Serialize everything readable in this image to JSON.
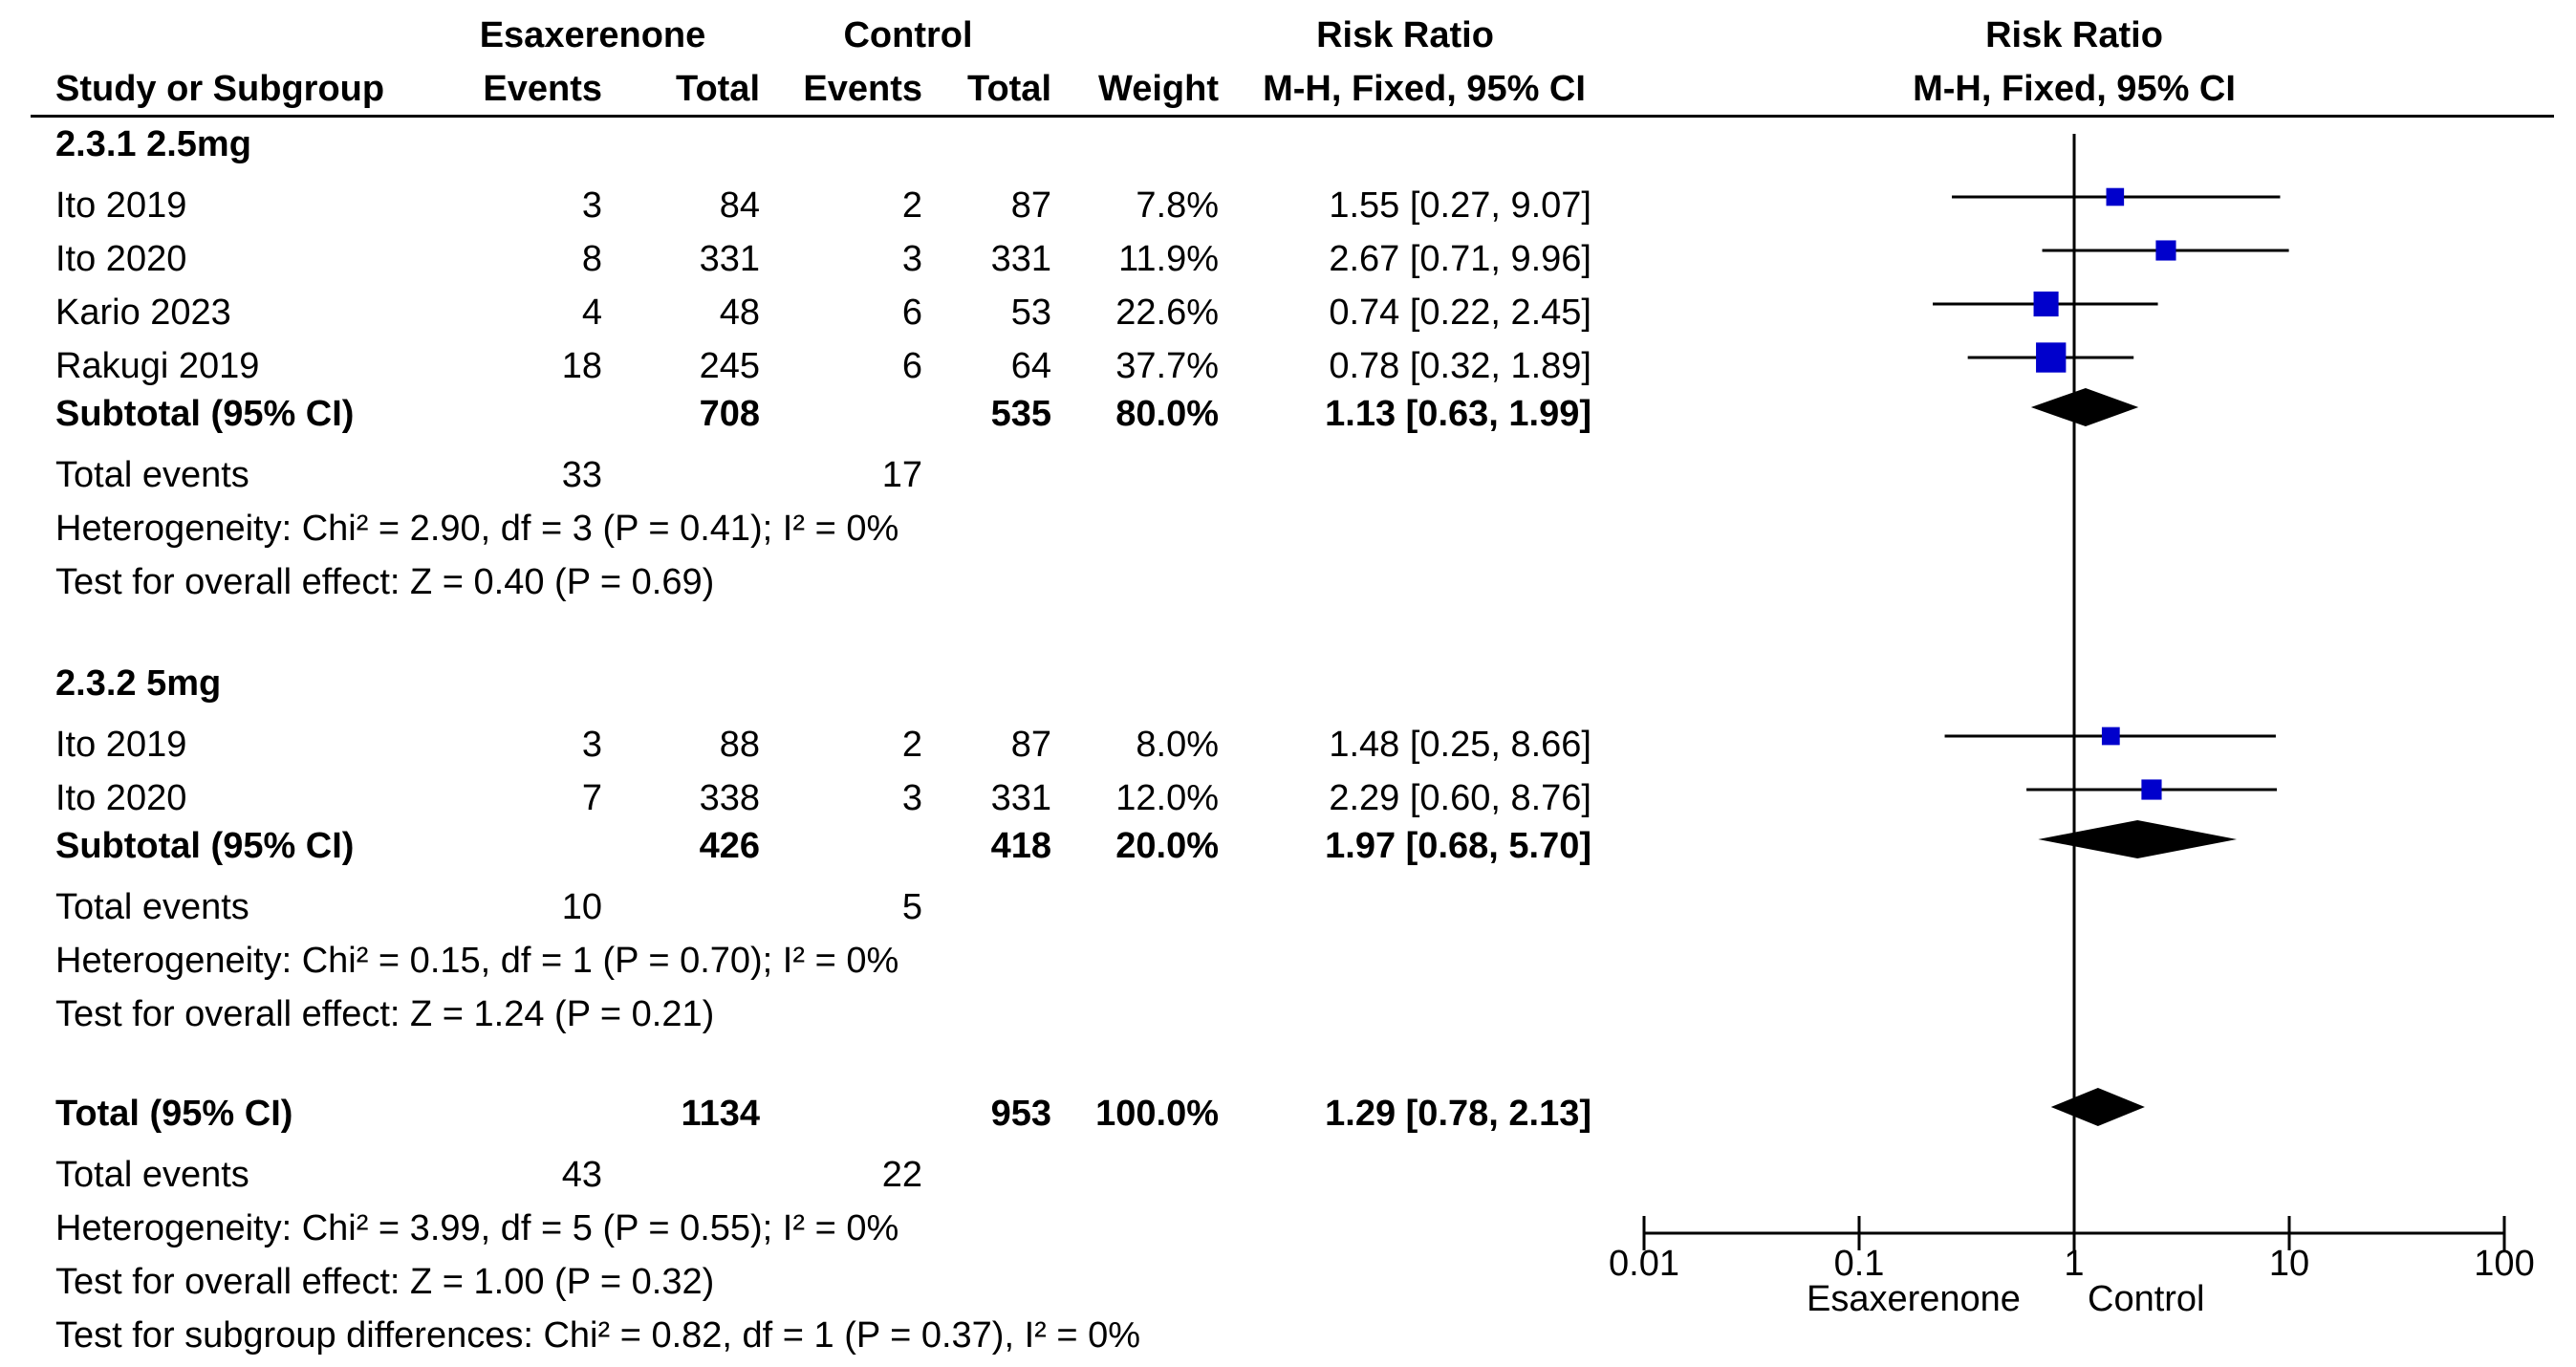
{
  "header": {
    "group1": "Esaxerenone",
    "group2": "Control",
    "rr_left": "Risk Ratio",
    "rr_right": "Risk Ratio",
    "study_col": "Study or Subgroup",
    "events1": "Events",
    "total1": "Total",
    "events2": "Events",
    "total2": "Total",
    "weight": "Weight",
    "method_left": "M-H, Fixed, 95% CI",
    "method_right": "M-H, Fixed, 95% CI"
  },
  "subgroups": [
    {
      "title": "2.3.1 2.5mg",
      "studies": [
        {
          "name": "Ito 2019",
          "e1": "3",
          "t1": "84",
          "e2": "2",
          "t2": "87",
          "weight": "7.8%",
          "ci": "1.55 [0.27, 9.07]"
        },
        {
          "name": "Ito 2020",
          "e1": "8",
          "t1": "331",
          "e2": "3",
          "t2": "331",
          "weight": "11.9%",
          "ci": "2.67 [0.71, 9.96]"
        },
        {
          "name": "Kario 2023",
          "e1": "4",
          "t1": "48",
          "e2": "6",
          "t2": "53",
          "weight": "22.6%",
          "ci": "0.74 [0.22, 2.45]"
        },
        {
          "name": "Rakugi 2019",
          "e1": "18",
          "t1": "245",
          "e2": "6",
          "t2": "64",
          "weight": "37.7%",
          "ci": "0.78 [0.32, 1.89]"
        }
      ],
      "subtotal": {
        "label": "Subtotal (95% CI)",
        "t1": "708",
        "t2": "535",
        "weight": "80.0%",
        "ci": "1.13 [0.63, 1.99]"
      },
      "total_events": {
        "label": "Total events",
        "e1": "33",
        "e2": "17"
      },
      "heterogeneity": "Heterogeneity: Chi² = 2.90, df = 3 (P = 0.41); I² = 0%",
      "overall": "Test for overall effect: Z = 0.40 (P = 0.69)"
    },
    {
      "title": "2.3.2 5mg",
      "studies": [
        {
          "name": "Ito 2019",
          "e1": "3",
          "t1": "88",
          "e2": "2",
          "t2": "87",
          "weight": "8.0%",
          "ci": "1.48 [0.25, 8.66]"
        },
        {
          "name": "Ito 2020",
          "e1": "7",
          "t1": "338",
          "e2": "3",
          "t2": "331",
          "weight": "12.0%",
          "ci": "2.29 [0.60, 8.76]"
        }
      ],
      "subtotal": {
        "label": "Subtotal (95% CI)",
        "t1": "426",
        "t2": "418",
        "weight": "20.0%",
        "ci": "1.97 [0.68, 5.70]"
      },
      "total_events": {
        "label": "Total events",
        "e1": "10",
        "e2": "5"
      },
      "heterogeneity": "Heterogeneity: Chi² = 0.15, df = 1 (P = 0.70); I² = 0%",
      "overall": "Test for overall effect: Z = 1.24 (P = 0.21)"
    }
  ],
  "total": {
    "label": "Total (95% CI)",
    "t1": "1134",
    "t2": "953",
    "weight": "100.0%",
    "ci": "1.29 [0.78, 2.13]",
    "events_label": "Total events",
    "e1": "43",
    "e2": "22",
    "heterogeneity": "Heterogeneity: Chi² = 3.99, df = 5 (P = 0.55); I² = 0%",
    "overall": "Test for overall effect: Z = 1.00 (P = 0.32)",
    "subgroup_diff": "Test for subgroup differences: Chi² = 0.82, df = 1 (P = 0.37), I² = 0%"
  },
  "axis_labels": {
    "favours_left": "Esaxerenone",
    "favours_right": "Control"
  },
  "chart_data": {
    "type": "forest",
    "scale": "log",
    "xlim": [
      0.01,
      100
    ],
    "ticks": [
      0.01,
      0.1,
      1,
      10,
      100
    ],
    "tick_labels": [
      "0.01",
      "0.1",
      "1",
      "10",
      "100"
    ],
    "null_line": 1,
    "marker_color": "#0000cc",
    "diamond_color": "#000000",
    "studies": [
      {
        "id": "s1",
        "rr": 1.55,
        "lo": 0.27,
        "hi": 9.07,
        "weight": 7.8
      },
      {
        "id": "s2",
        "rr": 2.67,
        "lo": 0.71,
        "hi": 9.96,
        "weight": 11.9
      },
      {
        "id": "s3",
        "rr": 0.74,
        "lo": 0.22,
        "hi": 2.45,
        "weight": 22.6
      },
      {
        "id": "s4",
        "rr": 0.78,
        "lo": 0.32,
        "hi": 1.89,
        "weight": 37.7
      },
      {
        "id": "s5",
        "rr": 1.48,
        "lo": 0.25,
        "hi": 8.66,
        "weight": 8.0
      },
      {
        "id": "s6",
        "rr": 2.29,
        "lo": 0.6,
        "hi": 8.76,
        "weight": 12.0
      }
    ],
    "diamonds": [
      {
        "id": "sub1",
        "rr": 1.13,
        "lo": 0.63,
        "hi": 1.99
      },
      {
        "id": "sub2",
        "rr": 1.97,
        "lo": 0.68,
        "hi": 5.7
      },
      {
        "id": "total",
        "rr": 1.29,
        "lo": 0.78,
        "hi": 2.13
      }
    ]
  }
}
